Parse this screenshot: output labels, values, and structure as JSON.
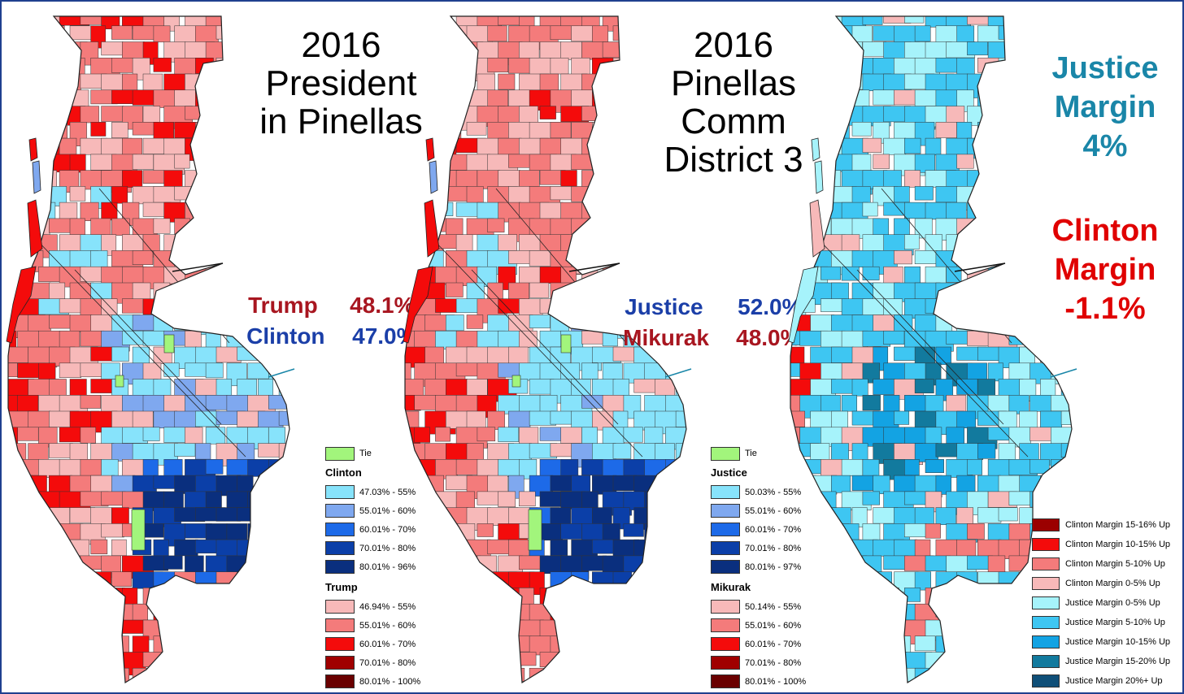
{
  "colors": {
    "tie": "#a2f57c",
    "blue": [
      "#87e3fb",
      "#7fa8ef",
      "#1d6ae8",
      "#0b3fa8",
      "#0a2f7e"
    ],
    "red": [
      "#f7b9b9",
      "#f47b7b",
      "#f40b0b",
      "#a00000",
      "#6a0000"
    ],
    "margin": [
      "#9b0000",
      "#f40b0b",
      "#f47b7b",
      "#f7b9b9",
      "#a6f3fb",
      "#3ec6f2",
      "#13a3e3",
      "#127a9e",
      "#0f4f78"
    ]
  },
  "map1": {
    "title_lines": [
      "2016",
      "President",
      "in Pinellas"
    ],
    "results": [
      {
        "name": "Trump",
        "pct": "48.1%",
        "color": "#a81620"
      },
      {
        "name": "Clinton",
        "pct": "47.0%",
        "color": "#1b3fa8"
      }
    ],
    "legend": {
      "tie": "Tie",
      "groups": [
        {
          "name": "Clinton",
          "ranges": [
            "47.03% - 55%",
            "55.01% - 60%",
            "60.01% - 70%",
            "70.01% - 80%",
            "80.01% - 96%"
          ]
        },
        {
          "name": "Trump",
          "ranges": [
            "46.94% - 55%",
            "55.01% - 60%",
            "60.01% - 70%",
            "70.01% - 80%",
            "80.01% - 100%"
          ]
        }
      ]
    }
  },
  "map2": {
    "title_lines": [
      "2016",
      "Pinellas",
      "Comm",
      "District 3"
    ],
    "results": [
      {
        "name": "Justice",
        "pct": "52.0%",
        "color": "#1b3fa8"
      },
      {
        "name": "Mikurak",
        "pct": "48.0%",
        "color": "#a81620"
      }
    ],
    "legend": {
      "tie": "Tie",
      "groups": [
        {
          "name": "Justice",
          "ranges": [
            "50.03% - 55%",
            "55.01% - 60%",
            "60.01% - 70%",
            "70.01% - 80%",
            "80.01% - 97%"
          ]
        },
        {
          "name": "Mikurak",
          "ranges": [
            "50.14% - 55%",
            "55.01% - 60%",
            "60.01% - 70%",
            "70.01% - 80%",
            "80.01% - 100%"
          ]
        }
      ]
    }
  },
  "map3": {
    "justice_margin": {
      "lines": [
        "Justice",
        "Margin",
        "4%"
      ],
      "color": "#1a86a8"
    },
    "clinton_margin": {
      "lines": [
        "Clinton",
        "Margin",
        "-1.1%"
      ],
      "color": "#e00000"
    },
    "legend": [
      "Clinton Margin 15-16% Up",
      "Clinton Margin 10-15% Up",
      "Clinton Margin 5-10% Up",
      "Clinton Margin 0-5% Up",
      "Justice Margin 0-5% Up",
      "Justice Margin 5-10% Up",
      "Justice Margin 10-15% Up",
      "Justice Margin 15-20% Up",
      "Justice Margin 20%+ Up"
    ]
  }
}
